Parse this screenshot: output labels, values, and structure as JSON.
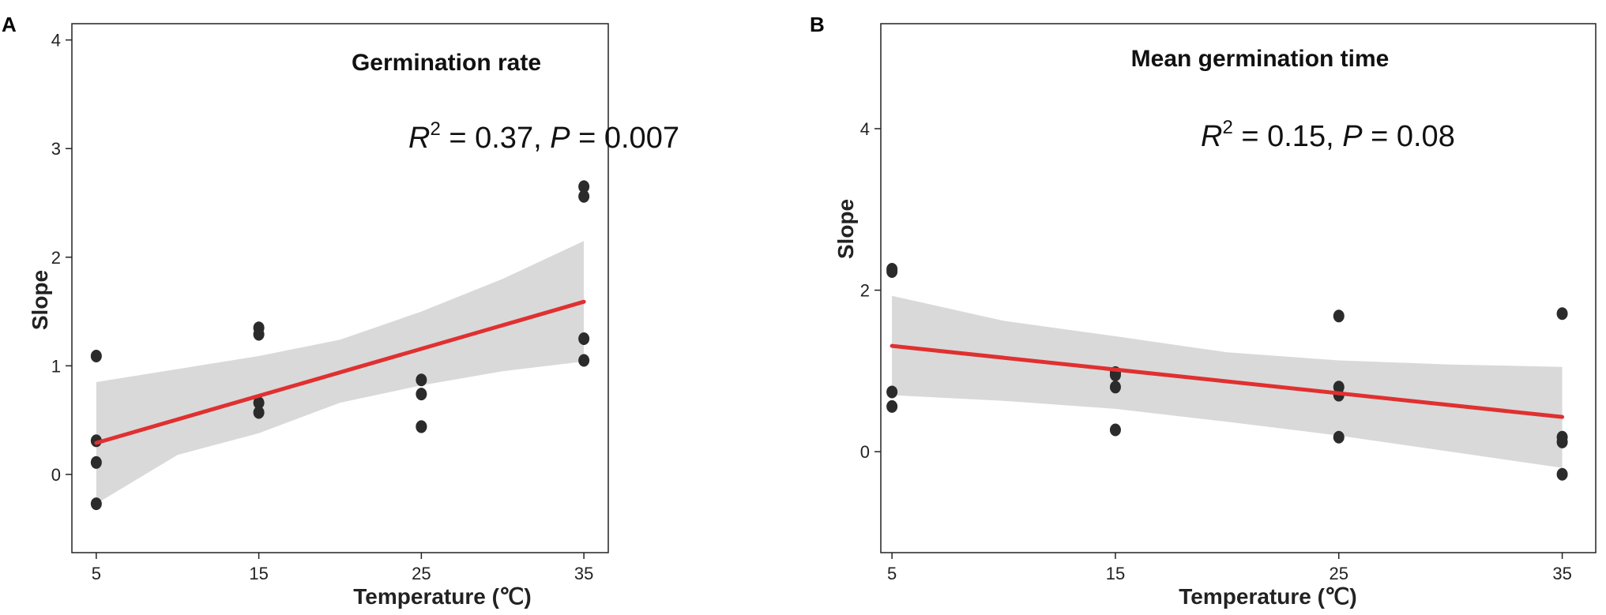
{
  "chart_data": [
    {
      "type": "scatter",
      "panel": "A",
      "title": "Germination rate",
      "xlabel": "Temperature (℃)",
      "ylabel": "Slope",
      "xlim": [
        3.5,
        36.5
      ],
      "ylim": [
        -0.72,
        4.15
      ],
      "xticks": [
        5,
        15,
        25,
        35
      ],
      "yticks": [
        0,
        1,
        2,
        3,
        4
      ],
      "stats": {
        "r2_label": "R",
        "r2_sup": "2",
        "r2_value": " = 0.37, ",
        "p_label": "P",
        "p_value": " = 0.007"
      },
      "points": [
        {
          "x": 5,
          "y": 1.09
        },
        {
          "x": 5,
          "y": 0.31
        },
        {
          "x": 5,
          "y": 0.11
        },
        {
          "x": 5,
          "y": -0.27
        },
        {
          "x": 15,
          "y": 1.35
        },
        {
          "x": 15,
          "y": 1.29
        },
        {
          "x": 15,
          "y": 0.66
        },
        {
          "x": 15,
          "y": 0.57
        },
        {
          "x": 25,
          "y": 0.87
        },
        {
          "x": 25,
          "y": 0.74
        },
        {
          "x": 25,
          "y": 0.44
        },
        {
          "x": 25,
          "y": 0.44
        },
        {
          "x": 35,
          "y": 2.65
        },
        {
          "x": 35,
          "y": 2.56
        },
        {
          "x": 35,
          "y": 1.25
        },
        {
          "x": 35,
          "y": 1.05
        }
      ],
      "fit": {
        "x": [
          5,
          35
        ],
        "y": [
          0.29,
          1.59
        ]
      },
      "band": {
        "x": [
          5,
          10,
          15,
          20,
          25,
          30,
          35
        ],
        "lower": [
          -0.27,
          0.18,
          0.38,
          0.66,
          0.82,
          0.95,
          1.04
        ],
        "upper": [
          0.85,
          0.97,
          1.09,
          1.24,
          1.5,
          1.8,
          2.15
        ]
      }
    },
    {
      "type": "scatter",
      "panel": "B",
      "title": "Mean germination time",
      "xlabel": "Temperature (℃)",
      "ylabel": "Slope",
      "xlim": [
        4.5,
        36.5
      ],
      "ylim": [
        -1.25,
        5.3
      ],
      "xticks": [
        5,
        15,
        25,
        35
      ],
      "yticks": [
        0,
        2,
        4
      ],
      "stats": {
        "r2_label": "R",
        "r2_sup": "2",
        "r2_value": " = 0.15, ",
        "p_label": "P",
        "p_value": " = 0.08"
      },
      "points": [
        {
          "x": 5,
          "y": 2.26
        },
        {
          "x": 5,
          "y": 2.23
        },
        {
          "x": 5,
          "y": 0.74
        },
        {
          "x": 5,
          "y": 0.56
        },
        {
          "x": 15,
          "y": 0.98
        },
        {
          "x": 15,
          "y": 0.95
        },
        {
          "x": 15,
          "y": 0.8
        },
        {
          "x": 15,
          "y": 0.27
        },
        {
          "x": 25,
          "y": 1.68
        },
        {
          "x": 25,
          "y": 0.8
        },
        {
          "x": 25,
          "y": 0.7
        },
        {
          "x": 25,
          "y": 0.18
        },
        {
          "x": 35,
          "y": 1.71
        },
        {
          "x": 35,
          "y": 0.18
        },
        {
          "x": 35,
          "y": 0.12
        },
        {
          "x": 35,
          "y": -0.28
        }
      ],
      "fit": {
        "x": [
          5,
          35
        ],
        "y": [
          1.31,
          0.43
        ]
      },
      "band": {
        "x": [
          5,
          10,
          15,
          20,
          25,
          30,
          35
        ],
        "lower": [
          0.7,
          0.63,
          0.53,
          0.37,
          0.2,
          0.0,
          -0.2
        ],
        "upper": [
          1.93,
          1.62,
          1.43,
          1.23,
          1.13,
          1.08,
          1.05
        ]
      }
    }
  ],
  "style": {
    "point_color": "#2b2b2b",
    "fit_color": "#e03030",
    "band_color": "#d9d9d9",
    "axis_color": "#222222"
  }
}
